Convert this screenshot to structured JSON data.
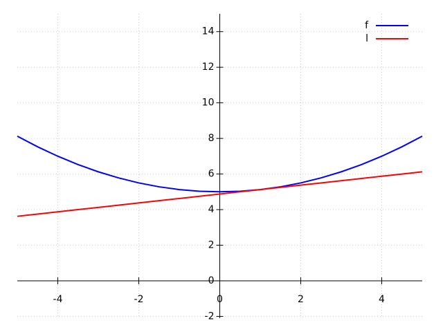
{
  "chart_data": {
    "type": "line",
    "x": [
      -5,
      -4.5,
      -4,
      -3.5,
      -3,
      -2.5,
      -2,
      -1.5,
      -1,
      -0.5,
      0,
      0.5,
      1,
      1.5,
      2,
      2.5,
      3,
      3.5,
      4,
      4.5,
      5
    ],
    "series": [
      {
        "name": "f",
        "color": "#0000ff",
        "values": [
          8.125,
          7.53125,
          7,
          6.53125,
          6.125,
          5.78125,
          5.5,
          5.28125,
          5.125,
          5.03125,
          5,
          5.03125,
          5.125,
          5.28125,
          5.5,
          5.78125,
          6.125,
          6.53125,
          7,
          7.53125,
          8.125
        ]
      },
      {
        "name": "l",
        "color": "#ff0000",
        "values": [
          3.625,
          3.75,
          3.875,
          4,
          4.125,
          4.25,
          4.375,
          4.5,
          4.625,
          4.75,
          4.875,
          5,
          5.125,
          5.25,
          5.375,
          5.5,
          5.625,
          5.75,
          5.875,
          6,
          6.125
        ]
      }
    ],
    "xlim": [
      -5,
      5
    ],
    "ylim": [
      -2.1,
      15
    ],
    "xticks": [
      -4,
      -2,
      0,
      2,
      4
    ],
    "yticks": [
      -2,
      0,
      2,
      4,
      6,
      8,
      10,
      12,
      14
    ],
    "grid": true,
    "legend": "upper right"
  }
}
